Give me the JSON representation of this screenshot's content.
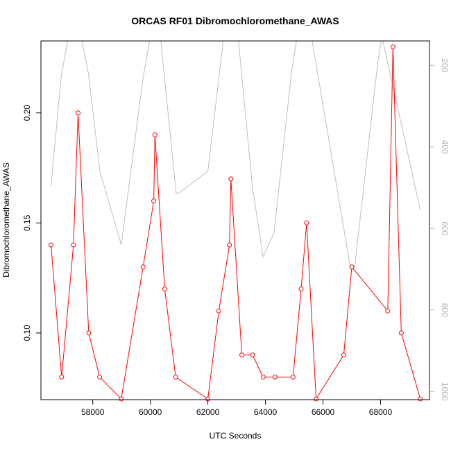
{
  "chart_data": {
    "type": "line",
    "title": "ORCAS RF01 Dibromochloromethane_AWAS",
    "xlabel": "UTC Seconds",
    "ylabel": "Dibromochloromethane_AWAS",
    "xlim": [
      56200,
      69700
    ],
    "ylim": [
      0.0697,
      0.2327
    ],
    "y2lim": [
      1020,
      140
    ],
    "x_ticks": [
      58000,
      60000,
      62000,
      64000,
      66000,
      68000
    ],
    "y_ticks": [
      0.1,
      0.15,
      0.2
    ],
    "y_tick_labels": [
      "0.10",
      "0.15",
      "0.20"
    ],
    "y2_ticks": [
      200,
      400,
      600,
      800,
      1000
    ],
    "grid": false,
    "series": [
      {
        "role": "primary",
        "color": "#ff0000",
        "markers": "open-circle",
        "x": [
          56550,
          56920,
          57330,
          57490,
          57860,
          58240,
          58990,
          59750,
          60120,
          60160,
          60500,
          60880,
          62000,
          62380,
          62750,
          62800,
          63180,
          63550,
          63920,
          64330,
          64960,
          65240,
          65430,
          65760,
          66720,
          67000,
          68250,
          68430,
          68720,
          69380
        ],
        "values": [
          0.14,
          0.08,
          0.14,
          0.2,
          0.1,
          0.08,
          0.07,
          0.13,
          0.16,
          0.19,
          0.12,
          0.08,
          0.07,
          0.11,
          0.14,
          0.17,
          0.09,
          0.09,
          0.08,
          0.08,
          0.08,
          0.12,
          0.15,
          0.07,
          0.09,
          0.13,
          0.11,
          0.23,
          0.1,
          0.07
        ]
      },
      {
        "role": "secondary",
        "color": "#bebebe",
        "axis": "right",
        "x": [
          56550,
          56900,
          57150,
          57600,
          57850,
          58250,
          58990,
          59750,
          60000,
          60350,
          60900,
          61050,
          62000,
          62400,
          62550,
          63050,
          63550,
          63920,
          64300,
          64900,
          65100,
          65600,
          66950,
          67100,
          67900,
          68050,
          69380
        ],
        "values": [
          495,
          230,
          130,
          130,
          220,
          460,
          640,
          230,
          130,
          130,
          515,
          510,
          460,
          220,
          130,
          130,
          500,
          670,
          610,
          220,
          130,
          130,
          695,
          695,
          195,
          130,
          555
        ]
      }
    ]
  }
}
